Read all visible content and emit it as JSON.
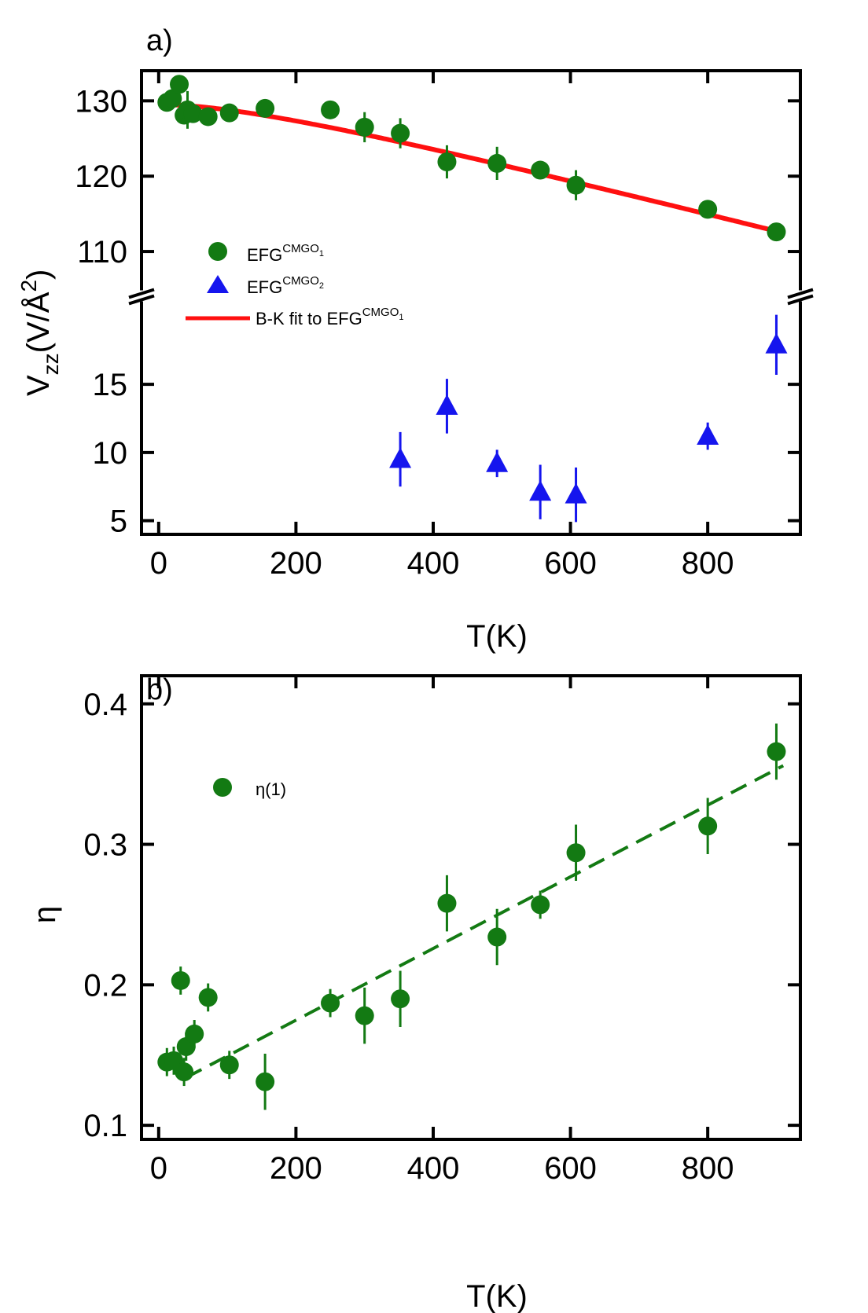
{
  "chart_data": [
    {
      "panel_label": "a)",
      "type": "scatter",
      "xlabel": "T(K)",
      "ylabel": {
        "main": "V",
        "sub": "zz",
        "rest": "(V/Å",
        "sup": "2",
        "close": ")"
      },
      "xlim": [
        -25,
        935
      ],
      "x_ticks": [
        "0",
        "200",
        "400",
        "600",
        "800"
      ],
      "x_tick_values": [
        0,
        200,
        400,
        600,
        800
      ],
      "y_axis_broken": true,
      "y_segments": [
        {
          "range": [
            105,
            134
          ],
          "ticks": [
            "110",
            "120",
            "130"
          ],
          "tick_values": [
            110,
            120,
            130
          ]
        },
        {
          "range": [
            4,
            21
          ],
          "ticks": [
            "5",
            "10",
            "15"
          ],
          "tick_values": [
            5,
            10,
            15
          ]
        }
      ],
      "grid": false,
      "legend_position": "upper-left",
      "series": [
        {
          "name": {
            "base": "EFG",
            "sup": "CMGO",
            "supsub": "1"
          },
          "marker": "circle",
          "color": "#137a13",
          "points": [
            {
              "x": 12,
              "y": 129.8,
              "err": 0.5
            },
            {
              "x": 20,
              "y": 130.3,
              "err": 0.6
            },
            {
              "x": 30,
              "y": 132.2,
              "err": 0.7
            },
            {
              "x": 37,
              "y": 128.1,
              "err": 1.2
            },
            {
              "x": 42,
              "y": 128.8,
              "err": 2.5
            },
            {
              "x": 50,
              "y": 128.3,
              "err": 0.5
            },
            {
              "x": 72,
              "y": 127.9,
              "err": 0.6
            },
            {
              "x": 103,
              "y": 128.4,
              "err": 0.8
            },
            {
              "x": 155,
              "y": 129.0,
              "err": 0.6
            },
            {
              "x": 250,
              "y": 128.8,
              "err": 0.7
            },
            {
              "x": 300,
              "y": 126.5,
              "err": 2.0
            },
            {
              "x": 352,
              "y": 125.7,
              "err": 2.0
            },
            {
              "x": 420,
              "y": 121.9,
              "err": 2.2
            },
            {
              "x": 493,
              "y": 121.7,
              "err": 2.2
            },
            {
              "x": 556,
              "y": 120.8,
              "err": 1.0
            },
            {
              "x": 608,
              "y": 118.8,
              "err": 2.0
            },
            {
              "x": 800,
              "y": 115.6,
              "err": 0.6
            },
            {
              "x": 900,
              "y": 112.6,
              "err": 0.6
            }
          ]
        },
        {
          "name": {
            "base": "EFG",
            "sup": "CMGO",
            "supsub": "2"
          },
          "marker": "triangle",
          "color": "#1515ee",
          "points": [
            {
              "x": 352,
              "y": 9.5,
              "err": 2.0
            },
            {
              "x": 420,
              "y": 13.4,
              "err": 2.0
            },
            {
              "x": 493,
              "y": 9.2,
              "err": 1.0
            },
            {
              "x": 556,
              "y": 7.1,
              "err": 2.0
            },
            {
              "x": 608,
              "y": 6.9,
              "err": 2.0
            },
            {
              "x": 800,
              "y": 11.2,
              "err": 1.0
            },
            {
              "x": 900,
              "y": 17.9,
              "err": 2.2
            }
          ]
        },
        {
          "name": {
            "base": "B-K fit to EFG",
            "sup": "CMGO",
            "supsub": "1"
          },
          "marker": "line",
          "color": "#ff1010",
          "fit": {
            "x_start": 12,
            "x_end": 900,
            "y0": 129.5,
            "a": 4.9e-06,
            "b": 0.00016
          }
        }
      ]
    },
    {
      "panel_label": "b)",
      "type": "scatter",
      "xlabel": "T(K)",
      "ylabel": "η",
      "xlim": [
        -25,
        935
      ],
      "ylim": [
        0.09,
        0.42
      ],
      "x_ticks": [
        "0",
        "200",
        "400",
        "600",
        "800"
      ],
      "x_tick_values": [
        0,
        200,
        400,
        600,
        800
      ],
      "y_ticks": [
        "0.1",
        "0.2",
        "0.3",
        "0.4"
      ],
      "y_tick_values": [
        0.1,
        0.2,
        0.3,
        0.4
      ],
      "grid": false,
      "legend_position": "upper-left",
      "series": [
        {
          "name": "η(1)",
          "marker": "circle",
          "color": "#137a13",
          "points": [
            {
              "x": 12,
              "y": 0.145,
              "err": 0.01
            },
            {
              "x": 22,
              "y": 0.146,
              "err": 0.01
            },
            {
              "x": 32,
              "y": 0.203,
              "err": 0.01
            },
            {
              "x": 37,
              "y": 0.138,
              "err": 0.01
            },
            {
              "x": 40,
              "y": 0.156,
              "err": 0.01
            },
            {
              "x": 52,
              "y": 0.165,
              "err": 0.01
            },
            {
              "x": 72,
              "y": 0.191,
              "err": 0.01
            },
            {
              "x": 103,
              "y": 0.143,
              "err": 0.01
            },
            {
              "x": 155,
              "y": 0.131,
              "err": 0.02
            },
            {
              "x": 250,
              "y": 0.187,
              "err": 0.01
            },
            {
              "x": 300,
              "y": 0.178,
              "err": 0.02
            },
            {
              "x": 352,
              "y": 0.19,
              "err": 0.02
            },
            {
              "x": 420,
              "y": 0.258,
              "err": 0.02
            },
            {
              "x": 493,
              "y": 0.234,
              "err": 0.02
            },
            {
              "x": 556,
              "y": 0.257,
              "err": 0.01
            },
            {
              "x": 608,
              "y": 0.294,
              "err": 0.02
            },
            {
              "x": 800,
              "y": 0.313,
              "err": 0.02
            },
            {
              "x": 900,
              "y": 0.366,
              "err": 0.02
            }
          ]
        },
        {
          "name": "",
          "marker": "dashed-line",
          "color": "#137a13",
          "line": {
            "x1": 40,
            "y1": 0.134,
            "x2": 910,
            "y2": 0.356
          }
        }
      ]
    }
  ]
}
